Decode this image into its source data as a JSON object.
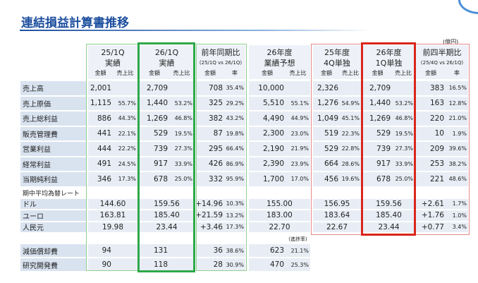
{
  "header": {
    "title": "連結損益計算書推移",
    "unit": "(億円)"
  },
  "table": {
    "groups": [
      {
        "line1": "25/1Q",
        "line2": "実績",
        "sub": [
          "金額",
          "売上比"
        ]
      },
      {
        "line1": "26/1Q",
        "line2": "実績",
        "sub": [
          "金額",
          "売上比"
        ]
      },
      {
        "line1": "前年同期比",
        "line2": "(25/1Q vs 26/1Q)",
        "sub": [
          "金額",
          "率"
        ]
      },
      {
        "line1": "26年度",
        "line2": "業績予想",
        "sub": [
          "金額",
          "売上比"
        ]
      },
      {
        "line1": "25年度",
        "line2": "4Q単独",
        "sub": [
          "金額",
          "売上比"
        ]
      },
      {
        "line1": "26年度",
        "line2": "1Q単独",
        "sub": [
          "金額",
          "売上比"
        ]
      },
      {
        "line1": "前四半期比",
        "line2": "(25/4Q vs 26/1Q)",
        "sub": [
          "金額",
          "率"
        ]
      }
    ],
    "rows": [
      {
        "label": "売上高",
        "cells": [
          "2,001",
          null,
          "2,709",
          null,
          "708",
          "35.4%",
          "10,000",
          null,
          "2,326",
          null,
          "2,709",
          null,
          "383",
          "16.5%"
        ]
      },
      {
        "label": "売上原価",
        "cells": [
          "1,115",
          "55.7%",
          "1,440",
          "53.2%",
          "325",
          "29.2%",
          "5,510",
          "55.1%",
          "1,276",
          "54.9%",
          "1,440",
          "53.2%",
          "163",
          "12.8%"
        ]
      },
      {
        "label": "売上総利益",
        "cells": [
          "886",
          "44.3%",
          "1,269",
          "46.8%",
          "382",
          "43.2%",
          "4,490",
          "44.9%",
          "1,049",
          "45.1%",
          "1,269",
          "46.8%",
          "220",
          "21.0%"
        ]
      },
      {
        "label": "販売管理費",
        "cells": [
          "441",
          "22.1%",
          "529",
          "19.5%",
          "87",
          "19.8%",
          "2,300",
          "23.0%",
          "519",
          "22.3%",
          "529",
          "19.5%",
          "10",
          "1.9%"
        ]
      },
      {
        "label": "営業利益",
        "cells": [
          "444",
          "22.2%",
          "739",
          "27.3%",
          "295",
          "66.4%",
          "2,190",
          "21.9%",
          "529",
          "22.8%",
          "739",
          "27.3%",
          "209",
          "39.6%"
        ]
      },
      {
        "label": "経常利益",
        "cells": [
          "491",
          "24.5%",
          "917",
          "33.9%",
          "426",
          "86.9%",
          "2,390",
          "23.9%",
          "664",
          "28.6%",
          "917",
          "33.9%",
          "253",
          "38.2%"
        ]
      },
      {
        "label": "当期純利益",
        "cells": [
          "346",
          "17.3%",
          "678",
          "25.0%",
          "332",
          "95.9%",
          "1,700",
          "17.0%",
          "456",
          "19.6%",
          "678",
          "25.0%",
          "221",
          "48.6%"
        ]
      }
    ],
    "fx_section": {
      "title": "期中平均為替レート",
      "rows": [
        {
          "label": "ドル",
          "cells": [
            "144.60",
            null,
            "159.56",
            null,
            "+14.96",
            "10.3%",
            "155.00",
            null,
            "156.95",
            null,
            "159.56",
            null,
            "+2.61",
            "1.7%"
          ]
        },
        {
          "label": "ユーロ",
          "cells": [
            "163.81",
            null,
            "185.40",
            null,
            "+21.59",
            "13.2%",
            "183.00",
            null,
            "183.64",
            null,
            "185.40",
            null,
            "+1.76",
            "1.0%"
          ]
        },
        {
          "label": "人民元",
          "cells": [
            "19.98",
            null,
            "23.44",
            null,
            "+3.46",
            "17.3%",
            "22.70",
            null,
            "22.67",
            null,
            "23.44",
            null,
            "+0.77",
            "3.4%"
          ]
        }
      ]
    },
    "note": "(進捗率)",
    "other_rows": [
      {
        "label": "減価償却費",
        "cells": [
          "94",
          null,
          "131",
          null,
          "36",
          "38.6%",
          "623",
          "21.1%",
          null,
          null,
          null,
          null,
          null,
          null
        ]
      },
      {
        "label": "研究開発費",
        "cells": [
          "90",
          null,
          "118",
          null,
          "28",
          "30.9%",
          "470",
          "25.3%",
          null,
          null,
          null,
          null,
          null,
          null
        ]
      }
    ]
  }
}
